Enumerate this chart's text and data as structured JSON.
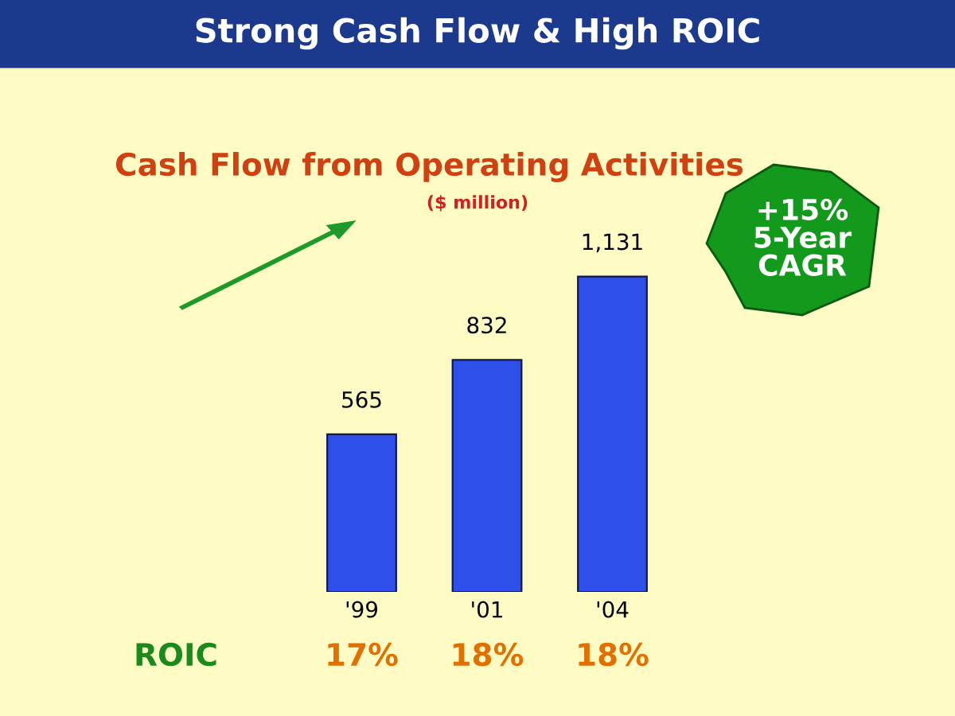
{
  "chart_data": {
    "type": "bar",
    "title": "Strong Cash Flow & High ROIC",
    "subtitle": "Cash Flow from Operating Activities",
    "ylabel": "($ million)",
    "categories": [
      "'99",
      "'01",
      "'04"
    ],
    "values": [
      565,
      832,
      1131
    ],
    "value_labels": [
      "565",
      "832",
      "1,131"
    ],
    "color": "#2f4fea",
    "annotations": [
      "+15%\n5-Year\nCAGR",
      "ROIC",
      "17%",
      "18%",
      "18%"
    ],
    "grid": false,
    "legend": false
  }
}
